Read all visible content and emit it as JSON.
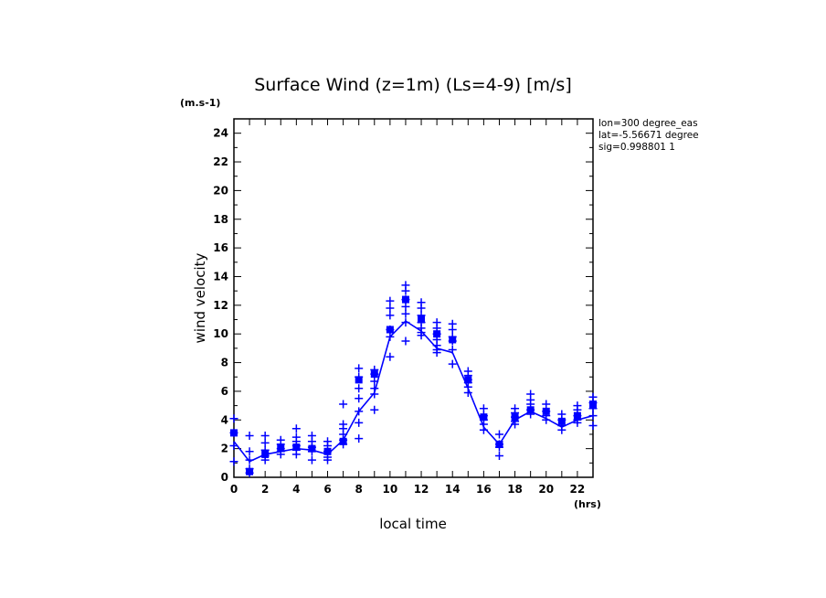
{
  "chart_data": {
    "type": "scatter",
    "title": "Surface Wind (z=1m) (Ls=4-9) [m/s]",
    "y_unit": "(m.s-1)",
    "x_unit": "(hrs)",
    "xlabel": "local time",
    "ylabel": "wind velocity",
    "xlim": [
      0,
      23
    ],
    "ylim": [
      0,
      25
    ],
    "x_ticks": [
      0,
      2,
      4,
      6,
      8,
      10,
      12,
      14,
      16,
      18,
      20,
      22
    ],
    "y_ticks": [
      0,
      2,
      4,
      6,
      8,
      10,
      12,
      14,
      16,
      18,
      20,
      22,
      24
    ],
    "grid": false,
    "color": "#0000ff",
    "annotations": [
      "lon=300 degree_eas",
      "lat=-5.56671 degree",
      "sig=0.998801 1"
    ],
    "series": [
      {
        "marker": "plus",
        "x": [
          0,
          0,
          0,
          0,
          1,
          1,
          1,
          1,
          1,
          2,
          2,
          2,
          2,
          2,
          3,
          3,
          3,
          3,
          3,
          4,
          4,
          4,
          4,
          4,
          4,
          5,
          5,
          5,
          5,
          5,
          6,
          6,
          6,
          6,
          6,
          7,
          7,
          7,
          7,
          7,
          7,
          8,
          8,
          8,
          8,
          8,
          8,
          8,
          9,
          9,
          9,
          9,
          9,
          9,
          10,
          10,
          10,
          10,
          10,
          10,
          11,
          11,
          11,
          11,
          11,
          11,
          11,
          12,
          12,
          12,
          12,
          12,
          12,
          12,
          13,
          13,
          13,
          13,
          13,
          13,
          13,
          14,
          14,
          14,
          14,
          14,
          14,
          15,
          15,
          15,
          15,
          15,
          15,
          16,
          16,
          16,
          16,
          16,
          17,
          17,
          17,
          17,
          18,
          18,
          18,
          18,
          18,
          19,
          19,
          19,
          19,
          19,
          20,
          20,
          20,
          20,
          21,
          21,
          21,
          21,
          22,
          22,
          22,
          22,
          22,
          23,
          23,
          23,
          23,
          23
        ],
        "y": [
          4.1,
          3.1,
          2.2,
          1.1,
          2.9,
          1.8,
          1.2,
          0.6,
          0.3,
          2.9,
          2.4,
          1.9,
          1.5,
          1.2,
          2.6,
          2.3,
          2.0,
          1.8,
          1.6,
          3.4,
          2.8,
          2.5,
          2.2,
          1.9,
          1.6,
          2.9,
          2.5,
          2.1,
          1.8,
          1.2,
          2.5,
          2.2,
          1.8,
          1.4,
          1.2,
          5.1,
          3.7,
          3.4,
          3.0,
          2.6,
          2.3,
          7.6,
          7.0,
          6.2,
          5.5,
          4.6,
          3.8,
          2.7,
          7.5,
          7.2,
          6.7,
          6.2,
          5.8,
          4.7,
          12.3,
          11.8,
          11.3,
          10.3,
          9.8,
          8.4,
          13.4,
          13.0,
          12.4,
          11.9,
          11.4,
          10.8,
          9.5,
          12.2,
          11.8,
          11.3,
          10.8,
          10.4,
          10.1,
          9.9,
          10.8,
          10.4,
          10.0,
          9.6,
          9.2,
          8.9,
          8.7,
          10.7,
          10.3,
          9.8,
          9.5,
          8.9,
          7.9,
          7.4,
          7.1,
          6.8,
          6.6,
          6.3,
          5.9,
          4.8,
          4.3,
          4.0,
          3.7,
          3.3,
          3.0,
          2.3,
          2.1,
          1.5,
          4.8,
          4.5,
          4.2,
          3.9,
          3.7,
          5.8,
          5.4,
          5.1,
          4.7,
          4.4,
          5.1,
          4.6,
          4.3,
          4.0,
          4.4,
          4.0,
          3.6,
          3.3,
          5.0,
          4.7,
          4.3,
          4.0,
          3.8,
          5.6,
          5.2,
          4.8,
          4.3,
          3.6
        ]
      },
      {
        "marker": "square",
        "x": [
          0,
          1,
          2,
          3,
          4,
          5,
          6,
          7,
          8,
          9,
          10,
          11,
          12,
          13,
          14,
          15,
          16,
          17,
          18,
          19,
          20,
          21,
          22,
          23
        ],
        "y": [
          3.1,
          0.4,
          1.6,
          2.1,
          2.1,
          2.0,
          1.8,
          2.5,
          6.8,
          7.2,
          10.3,
          12.4,
          11.0,
          10.0,
          9.6,
          6.8,
          4.2,
          2.3,
          4.2,
          4.7,
          4.6,
          3.9,
          4.3,
          5.1
        ]
      },
      {
        "marker": "line",
        "x": [
          0,
          1,
          2,
          3,
          4,
          5,
          6,
          7,
          8,
          9,
          10,
          11,
          12,
          13,
          14,
          15,
          16,
          17,
          18,
          19,
          20,
          21,
          22,
          23
        ],
        "y": [
          2.5,
          1.1,
          1.6,
          1.8,
          2.0,
          1.9,
          1.6,
          2.6,
          4.6,
          5.9,
          9.8,
          10.9,
          10.2,
          9.0,
          8.7,
          6.2,
          3.5,
          2.3,
          4.0,
          4.6,
          4.1,
          3.5,
          4.0,
          4.3
        ]
      }
    ]
  }
}
